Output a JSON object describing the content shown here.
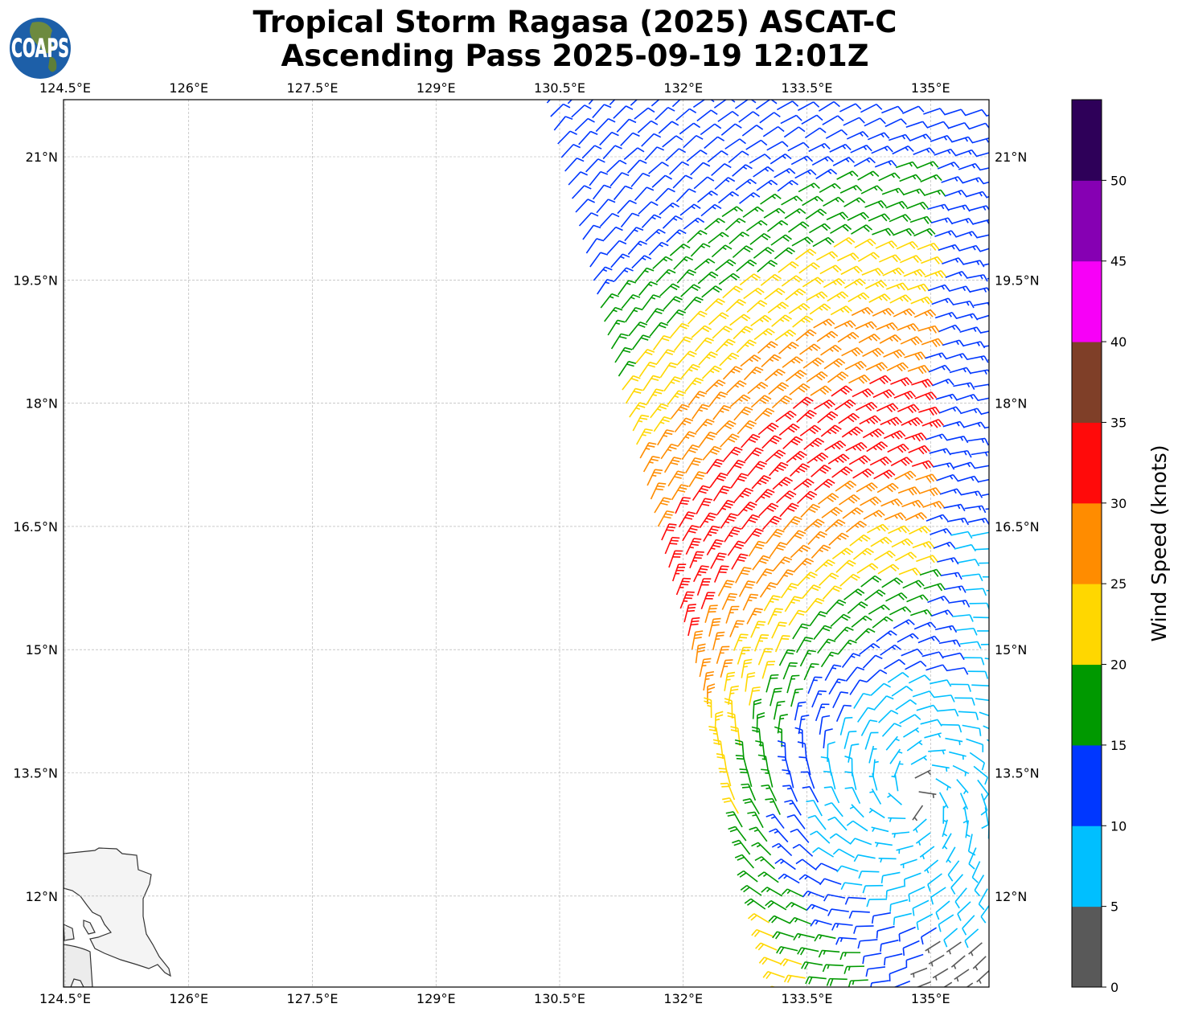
{
  "title": {
    "line1": "Tropical Storm Ragasa (2025) ASCAT-C",
    "line2": "Ascending Pass 2025-09-19 12:01Z"
  },
  "logo": {
    "text": "COAPS"
  },
  "map": {
    "lon_ticks": [
      "124.5°E",
      "126°E",
      "127.5°E",
      "129°E",
      "130.5°E",
      "132°E",
      "133.5°E",
      "135°E"
    ],
    "lon_values": [
      124.5,
      126,
      127.5,
      129,
      130.5,
      132,
      133.5,
      135
    ],
    "lat_ticks": [
      "21°N",
      "19.5°N",
      "18°N",
      "16.5°N",
      "15°N",
      "13.5°N",
      "12°N"
    ],
    "lat_values": [
      21,
      19.5,
      18,
      16.5,
      15,
      13.5,
      12
    ],
    "extent": {
      "lon_min": 124.5,
      "lon_max": 135.75,
      "lat_min": 10.9,
      "lat_max": 21.7
    }
  },
  "colorbar": {
    "label": "Wind Speed (knots)",
    "ticks": [
      "0",
      "5",
      "10",
      "15",
      "20",
      "25",
      "30",
      "35",
      "40",
      "45",
      "50"
    ],
    "colors": [
      "#595959",
      "#00bfff",
      "#0037ff",
      "#009900",
      "#ffd700",
      "#ff8c00",
      "#ff0a0a",
      "#7f3f28",
      "#f700f7",
      "#8600b3",
      "#2e0059"
    ]
  }
}
